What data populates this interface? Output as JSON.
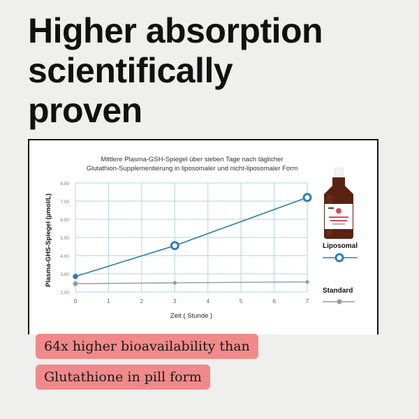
{
  "headline": {
    "line1": "Higher absorption",
    "line2": "scientifically",
    "line3": "proven"
  },
  "chart_data": {
    "type": "line",
    "title_line1": "Mittlere Plasma-GSH-Spiegel über sieben Tage nach täglicher",
    "title_line2": "Glutathion-Supplementierung in liposomaler und nicht-liposomaler Form",
    "xlabel": "Zeit ( Stunde )",
    "ylabel": "Plasma-GHS-Spiegel (µmol/L)",
    "x_ticks": [
      "0",
      "1",
      "2",
      "3",
      "4",
      "5",
      "6",
      "7"
    ],
    "y_ticks": [
      "2,00",
      "3,00",
      "4,00",
      "5,00",
      "6,00",
      "7,00",
      "8,00"
    ],
    "xlim": [
      0,
      7
    ],
    "ylim": [
      2,
      8
    ],
    "grid": true,
    "legend_position": "right",
    "series": [
      {
        "name": "Liposomal",
        "x": [
          0,
          3,
          7
        ],
        "y": [
          2.85,
          4.55,
          7.2
        ],
        "color": "#2f7fb0"
      },
      {
        "name": "Standard",
        "x": [
          0,
          3,
          7
        ],
        "y": [
          2.45,
          2.5,
          2.55
        ],
        "color": "#9a9a9a"
      }
    ]
  },
  "product": {
    "image_icon": "liposomal-glutathione-bottle-icon"
  },
  "callouts": {
    "line1": "64x higher bioavailability than",
    "line2": "Glutathione in pill form"
  },
  "colors": {
    "background": "#efefee",
    "callout": "#f08a8a",
    "grid": "#a9d4ee",
    "liposomal": "#2f7fb0",
    "standard": "#9a9a9a"
  }
}
